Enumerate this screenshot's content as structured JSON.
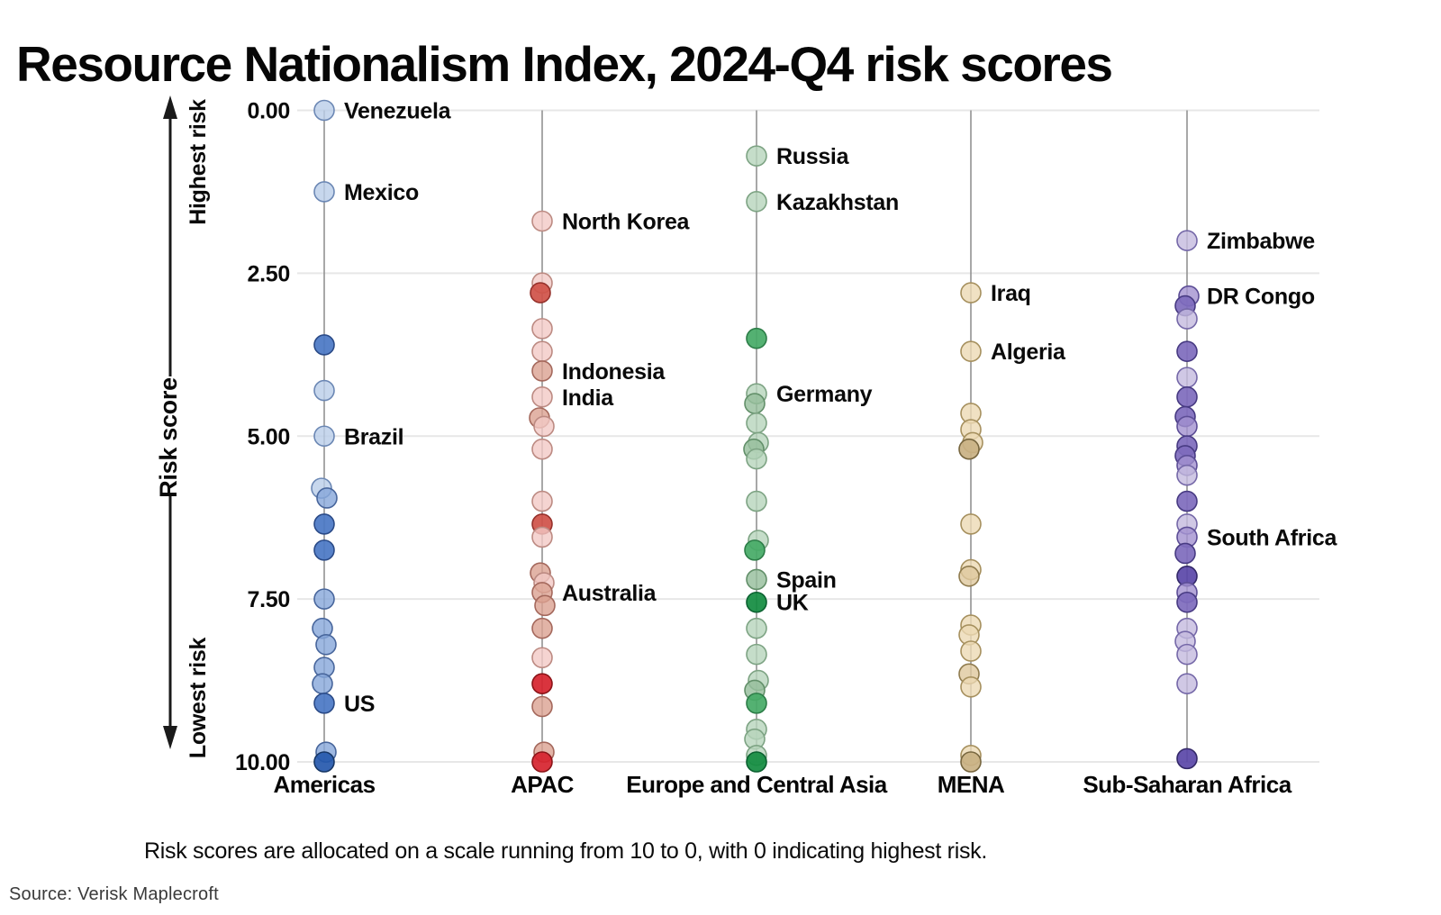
{
  "page": {
    "title": "Resource Nationalism Index, 2024-Q4 risk scores",
    "caption": "Risk scores are allocated on a scale running from 10 to 0, with 0 indicating highest risk.",
    "source": "Source: Verisk Maplecroft"
  },
  "chart_data": {
    "type": "scatter",
    "title": "Resource Nationalism Index, 2024-Q4 risk scores",
    "ylabel": "Risk score",
    "axis_annotations": {
      "top": "Highest risk",
      "middle": "Risk score",
      "bottom": "Lowest risk"
    },
    "ytick_labels": [
      "0.00",
      "2.50",
      "5.00",
      "7.50",
      "10.00"
    ],
    "ytick_values": [
      0,
      2.5,
      5,
      7.5,
      10
    ],
    "ylim": [
      0,
      10
    ],
    "y_inverted": true,
    "grid": true,
    "note": "Risk scores run from 10 (lowest risk) at the bottom to 0 (highest risk) at the top; dot shade deepens with color intensity of the datapoint.",
    "categories": [
      "Americas",
      "APAC",
      "Europe and Central Asia",
      "MENA",
      "Sub-Saharan Africa"
    ],
    "series": [
      {
        "name": "Americas",
        "fills": [
          "#b9cde9",
          "#86a6d9",
          "#4a77c4",
          "#2558ad"
        ],
        "strokes": [
          "#6b87b4",
          "#48669c",
          "#2a4a87",
          "#173766"
        ],
        "points": [
          {
            "v": 0.0,
            "s": 0,
            "label": "Venezuela"
          },
          {
            "v": 1.25,
            "s": 0,
            "label": "Mexico"
          },
          {
            "v": 3.6,
            "s": 2
          },
          {
            "v": 4.3,
            "s": 0
          },
          {
            "v": 5.0,
            "s": 0,
            "label": "Brazil"
          },
          {
            "v": 5.8,
            "s": 0,
            "dx": -3
          },
          {
            "v": 5.95,
            "s": 1,
            "dx": 3
          },
          {
            "v": 6.35,
            "s": 2
          },
          {
            "v": 6.75,
            "s": 2
          },
          {
            "v": 7.5,
            "s": 1
          },
          {
            "v": 7.95,
            "s": 1,
            "dx": -2
          },
          {
            "v": 8.2,
            "s": 1,
            "dx": 2
          },
          {
            "v": 8.55,
            "s": 1
          },
          {
            "v": 8.8,
            "s": 1,
            "dx": -2
          },
          {
            "v": 9.1,
            "s": 2,
            "label": "US"
          },
          {
            "v": 9.85,
            "s": 1,
            "dx": 2
          },
          {
            "v": 10.0,
            "s": 3
          }
        ]
      },
      {
        "name": "APAC",
        "fills": [
          "#f2c9c5",
          "#dba191",
          "#cf5148",
          "#d6232e"
        ],
        "strokes": [
          "#bc8a82",
          "#a4685c",
          "#96312b",
          "#8c1418"
        ],
        "points": [
          {
            "v": 1.7,
            "s": 0,
            "label": "North Korea"
          },
          {
            "v": 2.65,
            "s": 0
          },
          {
            "v": 2.8,
            "s": 2,
            "dx": -2
          },
          {
            "v": 3.35,
            "s": 0
          },
          {
            "v": 3.7,
            "s": 0
          },
          {
            "v": 4.0,
            "s": 1,
            "label": "Indonesia"
          },
          {
            "v": 4.4,
            "s": 0,
            "label": "India"
          },
          {
            "v": 4.72,
            "s": 1,
            "dx": -3
          },
          {
            "v": 4.85,
            "s": 0,
            "dx": 2
          },
          {
            "v": 5.2,
            "s": 0
          },
          {
            "v": 6.0,
            "s": 0
          },
          {
            "v": 6.35,
            "s": 2
          },
          {
            "v": 6.55,
            "s": 0
          },
          {
            "v": 7.1,
            "s": 1,
            "dx": -2
          },
          {
            "v": 7.25,
            "s": 0,
            "dx": 2
          },
          {
            "v": 7.4,
            "s": 1,
            "label": "Australia"
          },
          {
            "v": 7.6,
            "s": 1,
            "dx": 3
          },
          {
            "v": 7.95,
            "s": 1
          },
          {
            "v": 8.4,
            "s": 0
          },
          {
            "v": 8.8,
            "s": 3
          },
          {
            "v": 9.15,
            "s": 1
          },
          {
            "v": 9.85,
            "s": 1,
            "dx": 2
          },
          {
            "v": 10.0,
            "s": 3
          }
        ]
      },
      {
        "name": "Europe and Central Asia",
        "fills": [
          "#b7d4bb",
          "#93bd9a",
          "#45aa66",
          "#128c40"
        ],
        "strokes": [
          "#7da383",
          "#628f69",
          "#2c7d47",
          "#0b6130"
        ],
        "points": [
          {
            "v": 0.7,
            "s": 0,
            "label": "Russia"
          },
          {
            "v": 1.4,
            "s": 0,
            "label": "Kazakhstan"
          },
          {
            "v": 3.5,
            "s": 2
          },
          {
            "v": 4.35,
            "s": 0,
            "label": "Germany"
          },
          {
            "v": 4.5,
            "s": 1,
            "dx": -2
          },
          {
            "v": 4.8,
            "s": 0
          },
          {
            "v": 5.1,
            "s": 0,
            "dx": 2
          },
          {
            "v": 5.2,
            "s": 1,
            "dx": -3
          },
          {
            "v": 5.35,
            "s": 0
          },
          {
            "v": 6.0,
            "s": 0
          },
          {
            "v": 6.6,
            "s": 0,
            "dx": 2
          },
          {
            "v": 6.75,
            "s": 2,
            "dx": -2
          },
          {
            "v": 7.2,
            "s": 1,
            "label": "Spain"
          },
          {
            "v": 7.55,
            "s": 3,
            "label": "UK"
          },
          {
            "v": 7.95,
            "s": 0
          },
          {
            "v": 8.35,
            "s": 0
          },
          {
            "v": 8.75,
            "s": 0,
            "dx": 2
          },
          {
            "v": 8.9,
            "s": 1,
            "dx": -2
          },
          {
            "v": 9.1,
            "s": 2
          },
          {
            "v": 9.5,
            "s": 0
          },
          {
            "v": 9.65,
            "s": 0,
            "dx": -2
          },
          {
            "v": 9.9,
            "s": 0
          },
          {
            "v": 10.0,
            "s": 3
          }
        ]
      },
      {
        "name": "MENA",
        "fills": [
          "#ecd9b4",
          "#dfc89e",
          "#c9b183",
          "#bfa674"
        ],
        "strokes": [
          "#a6905e",
          "#8f7b4e",
          "#77663f",
          "#6b5b37"
        ],
        "points": [
          {
            "v": 2.8,
            "s": 0,
            "label": "Iraq"
          },
          {
            "v": 3.7,
            "s": 0,
            "label": "Algeria"
          },
          {
            "v": 4.65,
            "s": 0
          },
          {
            "v": 4.9,
            "s": 0
          },
          {
            "v": 5.1,
            "s": 0,
            "dx": 2
          },
          {
            "v": 5.2,
            "s": 2,
            "dx": -2
          },
          {
            "v": 6.35,
            "s": 0
          },
          {
            "v": 7.05,
            "s": 0
          },
          {
            "v": 7.15,
            "s": 1,
            "dx": -2
          },
          {
            "v": 7.9,
            "s": 0
          },
          {
            "v": 8.05,
            "s": 0,
            "dx": -2
          },
          {
            "v": 8.3,
            "s": 0
          },
          {
            "v": 8.65,
            "s": 1,
            "dx": -2
          },
          {
            "v": 8.85,
            "s": 0
          },
          {
            "v": 9.9,
            "s": 0
          },
          {
            "v": 10.0,
            "s": 2
          }
        ]
      },
      {
        "name": "Sub-Saharan Africa",
        "fills": [
          "#c4badf",
          "#a291cf",
          "#7e6bbd",
          "#5a46a8"
        ],
        "strokes": [
          "#7568a8",
          "#5c4d96",
          "#473a82",
          "#332868"
        ],
        "points": [
          {
            "v": 2.0,
            "s": 0,
            "label": "Zimbabwe"
          },
          {
            "v": 2.85,
            "s": 1,
            "dx": 2,
            "label": "DR Congo"
          },
          {
            "v": 3.0,
            "s": 2,
            "dx": -2
          },
          {
            "v": 3.2,
            "s": 0
          },
          {
            "v": 3.7,
            "s": 2
          },
          {
            "v": 4.1,
            "s": 0
          },
          {
            "v": 4.4,
            "s": 2
          },
          {
            "v": 4.7,
            "s": 2,
            "dx": -2
          },
          {
            "v": 4.85,
            "s": 1
          },
          {
            "v": 5.15,
            "s": 2
          },
          {
            "v": 5.3,
            "s": 2,
            "dx": -2
          },
          {
            "v": 5.45,
            "s": 1
          },
          {
            "v": 5.6,
            "s": 0
          },
          {
            "v": 6.0,
            "s": 2
          },
          {
            "v": 6.35,
            "s": 0
          },
          {
            "v": 6.55,
            "s": 1,
            "label": "South Africa"
          },
          {
            "v": 6.8,
            "s": 2,
            "dx": -2
          },
          {
            "v": 7.15,
            "s": 3
          },
          {
            "v": 7.4,
            "s": 1
          },
          {
            "v": 7.55,
            "s": 2
          },
          {
            "v": 7.95,
            "s": 0
          },
          {
            "v": 8.15,
            "s": 0,
            "dx": -2
          },
          {
            "v": 8.35,
            "s": 0
          },
          {
            "v": 8.8,
            "s": 0
          },
          {
            "v": 9.95,
            "s": 3
          }
        ]
      }
    ],
    "colors": {
      "gridline": "#e7e7e7",
      "column_line": "#8c8c8c",
      "axis_text": "#0a0a0a",
      "arrow": "#1a1a1a"
    }
  }
}
